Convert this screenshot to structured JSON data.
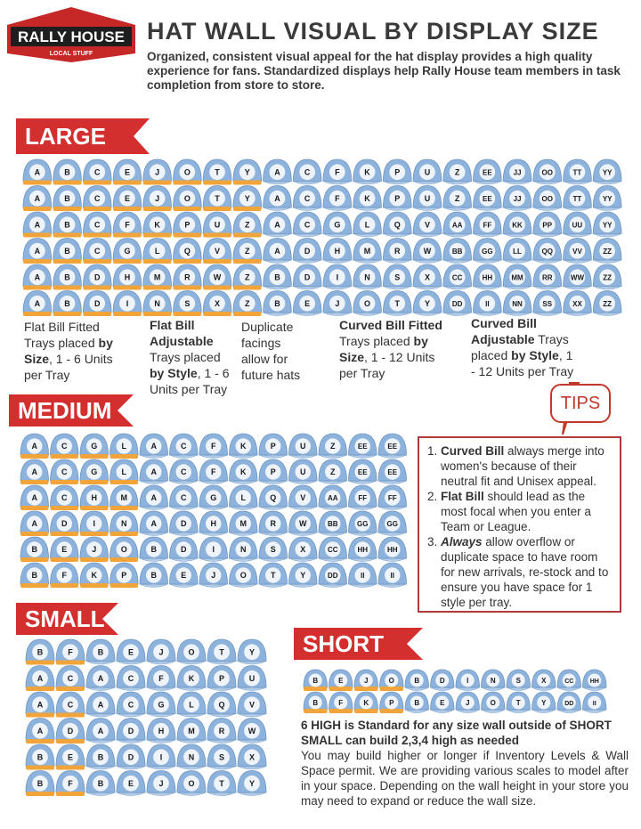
{
  "header": {
    "logo": "RALLY HOUSE",
    "logo_tagline": "LOCAL STUFF",
    "title": "HAT WALL VISUAL BY DISPLAY SIZE",
    "subtitle": "Organized, consistent visual appeal for the hat display provides a high quality experience for fans. Standardized displays help Rally House team members in task completion from store to store."
  },
  "sections": [
    {
      "label": "LARGE",
      "rows": [
        {
          "flat": [
            "A",
            "B",
            "C",
            "E",
            "J",
            "O",
            "T",
            "Y"
          ],
          "curved": [
            "A",
            "C",
            "F",
            "K",
            "P",
            "U",
            "Z",
            "EE",
            "JJ",
            "OO",
            "TT",
            "YY"
          ]
        },
        {
          "flat": [
            "A",
            "B",
            "C",
            "E",
            "J",
            "O",
            "T",
            "Y"
          ],
          "curved": [
            "A",
            "C",
            "F",
            "K",
            "P",
            "U",
            "Z",
            "EE",
            "JJ",
            "OO",
            "TT",
            "YY"
          ]
        },
        {
          "flat": [
            "A",
            "B",
            "C",
            "F",
            "K",
            "P",
            "U",
            "Z"
          ],
          "curved": [
            "A",
            "C",
            "G",
            "L",
            "Q",
            "V",
            "AA",
            "FF",
            "KK",
            "PP",
            "UU",
            "YY"
          ]
        },
        {
          "flat": [
            "A",
            "B",
            "C",
            "G",
            "L",
            "Q",
            "V",
            "Z"
          ],
          "curved": [
            "A",
            "D",
            "H",
            "M",
            "R",
            "W",
            "BB",
            "GG",
            "LL",
            "QQ",
            "VV",
            "ZZ"
          ]
        },
        {
          "flat": [
            "A",
            "B",
            "D",
            "H",
            "M",
            "R",
            "W",
            "Z"
          ],
          "curved": [
            "B",
            "D",
            "I",
            "N",
            "S",
            "X",
            "CC",
            "HH",
            "MM",
            "RR",
            "WW",
            "ZZ"
          ]
        },
        {
          "flat": [
            "A",
            "B",
            "D",
            "I",
            "N",
            "S",
            "X",
            "Z"
          ],
          "curved": [
            "B",
            "E",
            "J",
            "O",
            "T",
            "Y",
            "DD",
            "II",
            "NN",
            "SS",
            "XX",
            "ZZ"
          ]
        }
      ]
    },
    {
      "label": "MEDIUM",
      "rows": [
        {
          "flat": [
            "A",
            "C",
            "G",
            "L"
          ],
          "curved": [
            "A",
            "C",
            "F",
            "K",
            "P",
            "U",
            "Z",
            "EE",
            "EE"
          ]
        },
        {
          "flat": [
            "A",
            "C",
            "G",
            "L"
          ],
          "curved": [
            "A",
            "C",
            "F",
            "K",
            "P",
            "U",
            "Z",
            "EE",
            "EE"
          ]
        },
        {
          "flat": [
            "A",
            "C",
            "H",
            "M"
          ],
          "curved": [
            "A",
            "C",
            "G",
            "L",
            "Q",
            "V",
            "AA",
            "FF",
            "FF"
          ]
        },
        {
          "flat": [
            "A",
            "D",
            "I",
            "N"
          ],
          "curved": [
            "A",
            "D",
            "H",
            "M",
            "R",
            "W",
            "BB",
            "GG",
            "GG"
          ]
        },
        {
          "flat": [
            "B",
            "E",
            "J",
            "O"
          ],
          "curved": [
            "B",
            "D",
            "I",
            "N",
            "S",
            "X",
            "CC",
            "HH",
            "HH"
          ]
        },
        {
          "flat": [
            "B",
            "F",
            "K",
            "P"
          ],
          "curved": [
            "B",
            "E",
            "J",
            "O",
            "T",
            "Y",
            "DD",
            "II",
            "II"
          ]
        }
      ]
    },
    {
      "label": "SMALL",
      "rows": [
        {
          "flat": [
            "B",
            "F"
          ],
          "curved": [
            "B",
            "E",
            "J",
            "O",
            "T",
            "Y"
          ]
        },
        {
          "flat": [
            "A",
            "C"
          ],
          "curved": [
            "A",
            "C",
            "F",
            "K",
            "P",
            "U"
          ]
        },
        {
          "flat": [
            "A",
            "C"
          ],
          "curved": [
            "A",
            "C",
            "G",
            "L",
            "Q",
            "V"
          ]
        },
        {
          "flat": [
            "A",
            "D"
          ],
          "curved": [
            "A",
            "D",
            "H",
            "M",
            "R",
            "W"
          ]
        },
        {
          "flat": [
            "B",
            "E"
          ],
          "curved": [
            "B",
            "D",
            "I",
            "N",
            "S",
            "X"
          ]
        },
        {
          "flat": [
            "B",
            "F"
          ],
          "curved": [
            "B",
            "E",
            "J",
            "O",
            "T",
            "Y"
          ]
        }
      ]
    },
    {
      "label": "SHORT",
      "rows": [
        {
          "flat": [
            "B",
            "E",
            "J",
            "O"
          ],
          "curved": [
            "B",
            "D",
            "I",
            "N",
            "S",
            "X",
            "CC",
            "HH"
          ]
        },
        {
          "flat": [
            "B",
            "F",
            "K",
            "P"
          ],
          "curved": [
            "B",
            "E",
            "J",
            "O",
            "T",
            "Y",
            "DD",
            "II"
          ]
        }
      ]
    }
  ],
  "large_captions": [
    [
      {
        "text": "Flat Bill Fitted Trays placed ",
        "bold": false
      },
      {
        "text": "by Size",
        "bold": true
      },
      {
        "text": ", 1 - 6 Units per Tray",
        "bold": false
      }
    ],
    [
      {
        "text": "Flat Bill Adjustable",
        "bold": true
      },
      {
        "text": " Trays placed ",
        "bold": false
      },
      {
        "text": "by Style",
        "bold": true
      },
      {
        "text": ", 1 - 6 Units per Tray",
        "bold": false
      }
    ],
    [
      {
        "text": "Duplicate facings allow for future hats",
        "bold": false
      }
    ],
    [
      {
        "text": "Curved Bill Fitted",
        "bold": true
      },
      {
        "text": " Trays placed ",
        "bold": false
      },
      {
        "text": "by Size",
        "bold": true
      },
      {
        "text": ", 1 - 12 Units per Tray",
        "bold": false
      }
    ],
    [
      {
        "text": "Curved Bill Adjustable",
        "bold": true
      },
      {
        "text": " Trays placed ",
        "bold": false
      },
      {
        "text": "by Style",
        "bold": true
      },
      {
        "text": ", 1 - 12 Units per Tray",
        "bold": false
      }
    ]
  ],
  "tips": {
    "title": "TIPS",
    "items": [
      [
        {
          "text": "Curved Bill",
          "bold": true
        },
        {
          "text": " always merge into women's because of their neutral fit and Unisex appeal.",
          "bold": false
        }
      ],
      [
        {
          "text": "Flat Bill",
          "bold": true
        },
        {
          "text": " should lead as the most focal when you enter a Team or League.",
          "bold": false
        }
      ],
      [
        {
          "text": "Always",
          "bold": true
        },
        {
          "text": " allow overflow or duplicate space  to have room for new arrivals, re-stock and to ensure you have space for 1 style per tray.",
          "bold": false
        }
      ]
    ]
  },
  "notes": {
    "standard": "6 HIGH is Standard for any size wall outside of SHORT",
    "small": "SMALL can build 2,3,4 high as needed",
    "paragraph": "You may build higher or longer if Inventory Levels & Wall Space permit. We are providing various scales to model after in your space. Depending on the wall height in your store you may need to expand or reduce the wall size."
  }
}
